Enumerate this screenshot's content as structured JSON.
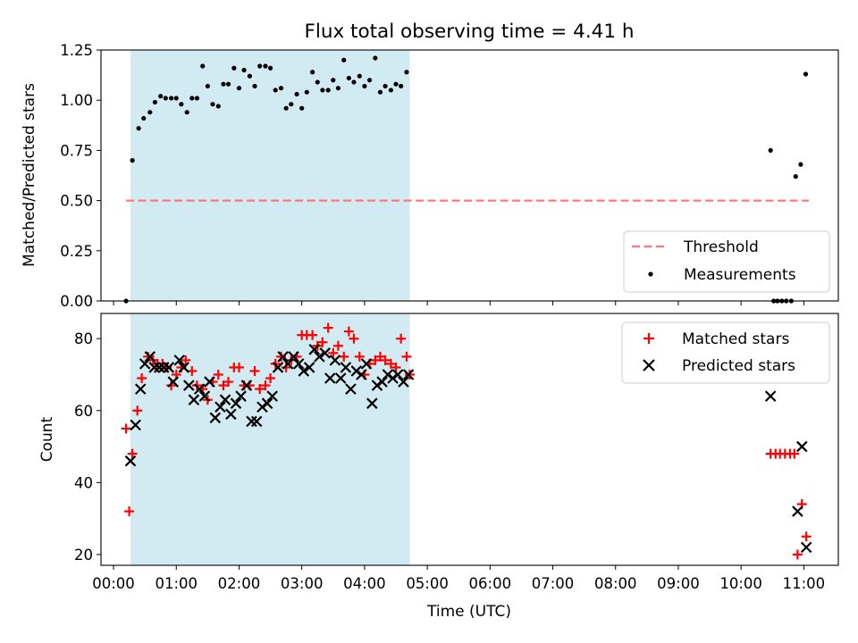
{
  "title": "Flux total observing time = 4.41 h",
  "colors": {
    "shade": "#add8e6",
    "threshold": "#ff7777",
    "matched": "#ff0000",
    "predicted": "#000000",
    "measurement": "#000000"
  },
  "chart_data": [
    {
      "type": "scatter",
      "ylabel": "Matched/Predicted stars",
      "xlabel": "",
      "xlim_hours": [
        -0.2,
        11.55
      ],
      "ylim": [
        0,
        1.25
      ],
      "yticks": [
        0.0,
        0.25,
        0.5,
        0.75,
        1.0,
        1.25
      ],
      "ytick_labels": [
        "0.00",
        "0.25",
        "0.50",
        "0.75",
        "1.00",
        "1.25"
      ],
      "shaded_span_hours": [
        0.27,
        4.72
      ],
      "threshold": {
        "label": "Threshold",
        "y": 0.5,
        "x_range_hours": [
          0.2,
          11.08
        ]
      },
      "legend": [
        "Threshold",
        "Measurements"
      ],
      "legend_location": "lower-right",
      "series": [
        {
          "name": "Measurements",
          "x_hours": [
            0.2,
            0.3,
            0.4,
            0.48,
            0.58,
            0.66,
            0.75,
            0.83,
            0.92,
            1.0,
            1.08,
            1.17,
            1.25,
            1.33,
            1.42,
            1.5,
            1.58,
            1.67,
            1.75,
            1.83,
            1.92,
            2.0,
            2.08,
            2.17,
            2.25,
            2.33,
            2.42,
            2.5,
            2.58,
            2.67,
            2.75,
            2.83,
            2.92,
            3.0,
            3.08,
            3.17,
            3.25,
            3.33,
            3.42,
            3.5,
            3.58,
            3.67,
            3.75,
            3.83,
            3.92,
            4.0,
            4.08,
            4.17,
            4.25,
            4.33,
            4.42,
            4.5,
            4.58,
            4.67,
            10.47,
            10.52,
            10.58,
            10.65,
            10.72,
            10.8,
            10.87,
            10.95,
            11.03
          ],
          "y": [
            0.0,
            0.7,
            0.86,
            0.91,
            0.94,
            0.99,
            1.02,
            1.01,
            1.01,
            1.01,
            0.98,
            0.94,
            1.01,
            1.01,
            1.17,
            1.07,
            0.98,
            0.97,
            1.08,
            1.08,
            1.16,
            1.06,
            1.15,
            1.12,
            1.07,
            1.17,
            1.17,
            1.16,
            1.05,
            1.06,
            0.96,
            0.98,
            1.03,
            0.96,
            1.04,
            1.14,
            1.09,
            1.05,
            1.05,
            1.1,
            1.06,
            1.2,
            1.11,
            1.09,
            1.12,
            1.07,
            1.1,
            1.21,
            1.04,
            1.07,
            1.05,
            1.08,
            1.07,
            1.14,
            0.75,
            0.0,
            0.0,
            0.0,
            0.0,
            0.0,
            0.62,
            0.68,
            1.13
          ]
        }
      ]
    },
    {
      "type": "scatter",
      "ylabel": "Count",
      "xlabel": "Time (UTC)",
      "xlim_hours": [
        -0.2,
        11.55
      ],
      "ylim": [
        17,
        87
      ],
      "yticks": [
        20,
        40,
        60,
        80
      ],
      "ytick_labels": [
        "20",
        "40",
        "60",
        "80"
      ],
      "xticks_hours": [
        0,
        1,
        2,
        3,
        4,
        5,
        6,
        7,
        8,
        9,
        10,
        11
      ],
      "xtick_labels": [
        "00:00",
        "01:00",
        "02:00",
        "03:00",
        "04:00",
        "05:00",
        "06:00",
        "07:00",
        "08:00",
        "09:00",
        "10:00",
        "11:00"
      ],
      "shaded_span_hours": [
        0.27,
        4.72
      ],
      "legend": [
        "Matched stars",
        "Predicted stars"
      ],
      "legend_location": "upper-right",
      "series": [
        {
          "name": "Matched stars",
          "marker": "plus",
          "x_hours": [
            0.2,
            0.25,
            0.3,
            0.38,
            0.45,
            0.55,
            0.63,
            0.7,
            0.78,
            0.85,
            0.92,
            1.0,
            1.08,
            1.15,
            1.25,
            1.33,
            1.42,
            1.5,
            1.58,
            1.67,
            1.75,
            1.83,
            1.92,
            2.0,
            2.08,
            2.17,
            2.25,
            2.33,
            2.42,
            2.5,
            2.58,
            2.67,
            2.75,
            2.83,
            2.92,
            3.0,
            3.08,
            3.17,
            3.25,
            3.33,
            3.42,
            3.5,
            3.58,
            3.67,
            3.75,
            3.83,
            3.92,
            4.0,
            4.08,
            4.17,
            4.25,
            4.33,
            4.42,
            4.5,
            4.58,
            4.67,
            4.72,
            10.47,
            10.55,
            10.62,
            10.7,
            10.78,
            10.85,
            10.9,
            10.97,
            11.04
          ],
          "y": [
            55,
            32,
            48,
            60,
            69,
            75,
            74,
            73,
            73,
            72,
            67,
            70,
            72,
            74,
            71,
            67,
            66,
            63,
            68,
            70,
            67,
            68,
            72,
            72,
            67,
            67,
            71,
            66,
            67,
            69,
            73,
            75,
            72,
            74,
            75,
            81,
            81,
            81,
            78,
            79,
            83,
            76,
            78,
            75,
            82,
            80,
            75,
            70,
            73,
            74,
            75,
            74,
            73,
            72,
            80,
            75,
            70,
            48,
            48,
            48,
            48,
            48,
            48,
            20,
            34,
            25
          ],
          "x_fix": true
        },
        {
          "name": "Predicted stars",
          "marker": "x",
          "x_hours": [
            0.27,
            0.35,
            0.43,
            0.5,
            0.58,
            0.65,
            0.73,
            0.8,
            0.88,
            0.95,
            1.05,
            1.12,
            1.2,
            1.28,
            1.37,
            1.45,
            1.53,
            1.62,
            1.7,
            1.78,
            1.87,
            1.95,
            2.03,
            2.12,
            2.2,
            2.28,
            2.37,
            2.45,
            2.53,
            2.62,
            2.7,
            2.78,
            2.87,
            2.95,
            3.03,
            3.12,
            3.2,
            3.28,
            3.37,
            3.45,
            3.53,
            3.62,
            3.7,
            3.78,
            3.87,
            3.95,
            4.03,
            4.12,
            4.2,
            4.28,
            4.37,
            4.45,
            4.53,
            4.62,
            4.7,
            10.47,
            10.9,
            10.97,
            11.04
          ],
          "y": [
            46,
            56,
            66,
            73,
            75,
            72,
            72,
            72,
            72,
            68,
            74,
            72,
            67,
            63,
            66,
            64,
            68,
            58,
            61,
            63,
            59,
            62,
            64,
            67,
            57,
            57,
            61,
            62,
            64,
            72,
            75,
            73,
            75,
            73,
            71,
            72,
            77,
            75,
            76,
            69,
            74,
            69,
            72,
            66,
            71,
            70,
            73,
            62,
            67,
            68,
            70,
            69,
            70,
            68,
            70,
            64,
            32,
            50,
            22
          ]
        }
      ]
    }
  ]
}
